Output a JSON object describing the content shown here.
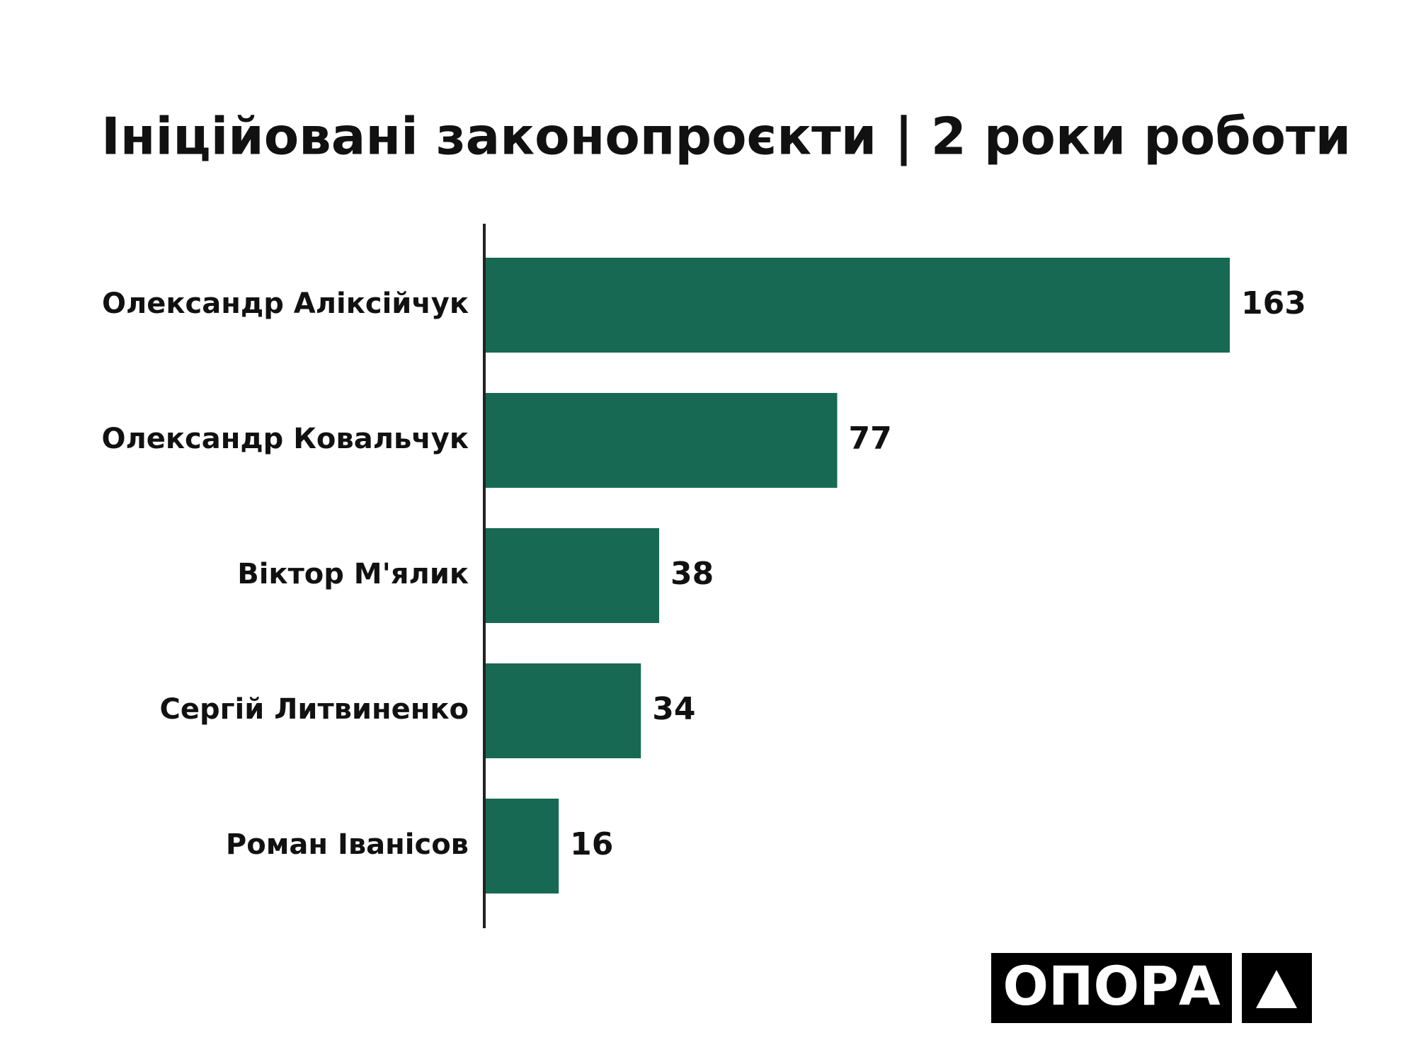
{
  "chart_data": {
    "type": "bar",
    "orientation": "horizontal",
    "title": "Ініційовані законопроєкти | 2 роки роботи",
    "categories": [
      "Олександр Аліксійчук",
      "Олександр Ковальчук",
      "Віктор М'ялик",
      "Сергій Литвиненко",
      "Роман Іванісов"
    ],
    "values": [
      163,
      77,
      38,
      34,
      16
    ],
    "color": "#186953"
  },
  "logo": {
    "text": "ОПОРА"
  }
}
